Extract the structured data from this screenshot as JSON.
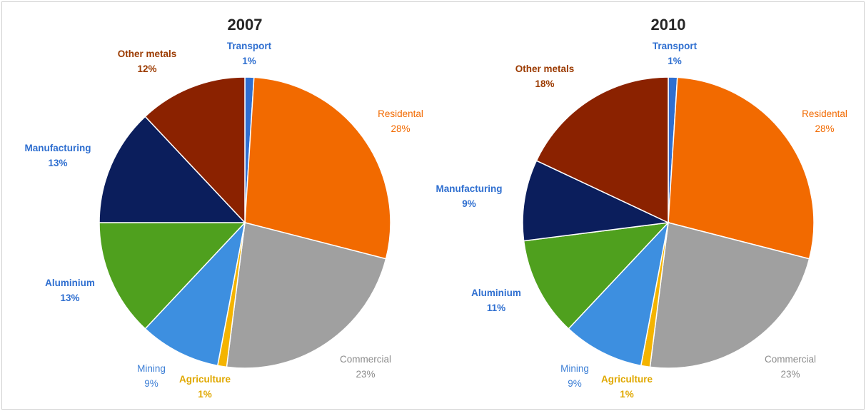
{
  "chart_data": [
    {
      "type": "pie",
      "title": "2007",
      "slices": [
        {
          "label": "Transport",
          "value": 1,
          "value_label": "1%",
          "color": "#2f6fd0",
          "label_color": "#2f6fd0",
          "bold": true
        },
        {
          "label": "Residental",
          "value": 28,
          "value_label": "28%",
          "color": "#f26a00",
          "label_color": "#f26a00",
          "bold": false
        },
        {
          "label": "Commercial",
          "value": 23,
          "value_label": "23%",
          "color": "#a0a0a0",
          "label_color": "#8c8c8c",
          "bold": false
        },
        {
          "label": "Agriculture",
          "value": 1,
          "value_label": "1%",
          "color": "#f4b400",
          "label_color": "#e0a800",
          "bold": true
        },
        {
          "label": "Mining",
          "value": 9,
          "value_label": "9%",
          "color": "#3d8fe0",
          "label_color": "#3d7fd6",
          "bold": false
        },
        {
          "label": "Aluminium",
          "value": 13,
          "value_label": "13%",
          "color": "#4fa01e",
          "label_color": "#2f6fd0",
          "bold": true
        },
        {
          "label": "Manufacturing",
          "value": 13,
          "value_label": "13%",
          "color": "#0b1e5c",
          "label_color": "#2f6fd0",
          "bold": true
        },
        {
          "label": "Other metals",
          "value": 12,
          "value_label": "12%",
          "color": "#8b2200",
          "label_color": "#9b3a00",
          "bold": true
        }
      ]
    },
    {
      "type": "pie",
      "title": "2010",
      "slices": [
        {
          "label": "Transport",
          "value": 1,
          "value_label": "1%",
          "color": "#2f6fd0",
          "label_color": "#2f6fd0",
          "bold": true
        },
        {
          "label": "Residental",
          "value": 28,
          "value_label": "28%",
          "color": "#f26a00",
          "label_color": "#f26a00",
          "bold": false
        },
        {
          "label": "Commercial",
          "value": 23,
          "value_label": "23%",
          "color": "#a0a0a0",
          "label_color": "#8c8c8c",
          "bold": false
        },
        {
          "label": "Agriculture",
          "value": 1,
          "value_label": "1%",
          "color": "#f4b400",
          "label_color": "#e0a800",
          "bold": true
        },
        {
          "label": "Mining",
          "value": 9,
          "value_label": "9%",
          "color": "#3d8fe0",
          "label_color": "#3d7fd6",
          "bold": false
        },
        {
          "label": "Aluminium",
          "value": 11,
          "value_label": "11%",
          "color": "#4fa01e",
          "label_color": "#2f6fd0",
          "bold": true
        },
        {
          "label": "Manufacturing",
          "value": 9,
          "value_label": "9%",
          "color": "#0b1e5c",
          "label_color": "#2f6fd0",
          "bold": true
        },
        {
          "label": "Other metals",
          "value": 18,
          "value_label": "18%",
          "color": "#8b2200",
          "label_color": "#9b3a00",
          "bold": true
        }
      ]
    }
  ]
}
